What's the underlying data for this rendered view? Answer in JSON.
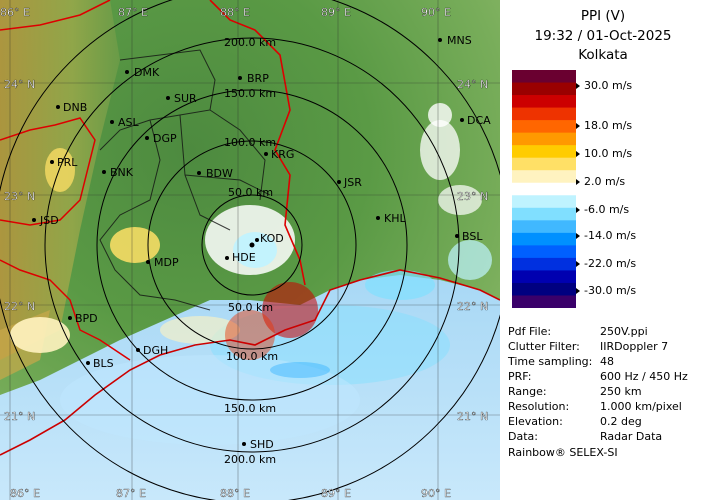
{
  "panel": {
    "product": "PPI (V)",
    "datetime": "19:32 / 01-Oct-2025",
    "station": "Kolkata"
  },
  "legend": {
    "colors": [
      "#6a0030",
      "#9a0000",
      "#cc0000",
      "#ee3300",
      "#ff6600",
      "#ff9900",
      "#ffcc00",
      "#ffe066",
      "#fff3c0",
      "#ffffff",
      "#bff3ff",
      "#80dfff",
      "#40b8ff",
      "#0090ff",
      "#0060ff",
      "#0030e0",
      "#0000b0",
      "#000080",
      "#3a006a"
    ],
    "labels": [
      "30.0 m/s",
      "18.0 m/s",
      "10.0 m/s",
      "2.0 m/s",
      "-6.0 m/s",
      "-14.0 m/s",
      "-22.0 m/s",
      "-30.0 m/s"
    ]
  },
  "metadata": [
    {
      "label": "Pdf File:",
      "value": "250V.ppi"
    },
    {
      "label": "Clutter Filter:",
      "value": "IIRDoppler 7"
    },
    {
      "label": "Time sampling:",
      "value": "48"
    },
    {
      "label": "PRF:",
      "value": "600 Hz / 450 Hz"
    },
    {
      "label": "Range:",
      "value": "250 km"
    },
    {
      "label": "Resolution:",
      "value": "1.000 km/pixel"
    },
    {
      "label": "Elevation:",
      "value": "0.2 deg"
    },
    {
      "label": "Data:",
      "value": "Radar Data"
    }
  ],
  "footer": "Rainbow® SELEX-SI",
  "map": {
    "lon_labels": [
      "86° E",
      "87° E",
      "88° E",
      "89° E",
      "90° E"
    ],
    "lat_labels": [
      "24° N",
      "23° N",
      "22° N",
      "21° N"
    ],
    "range_rings": [
      "50.0 km",
      "100.0 km",
      "150.0 km",
      "200.0 km"
    ],
    "stations": [
      "DMK",
      "BRP",
      "MNS",
      "DNB",
      "SUR",
      "ASL",
      "DGP",
      "KRG",
      "DCA",
      "PRL",
      "BNK",
      "BDW",
      "JSR",
      "KHL",
      "JSD",
      "BSL",
      "MDP",
      "KOD",
      "HDE",
      "BPD",
      "BLS",
      "DGH",
      "SHD"
    ]
  }
}
